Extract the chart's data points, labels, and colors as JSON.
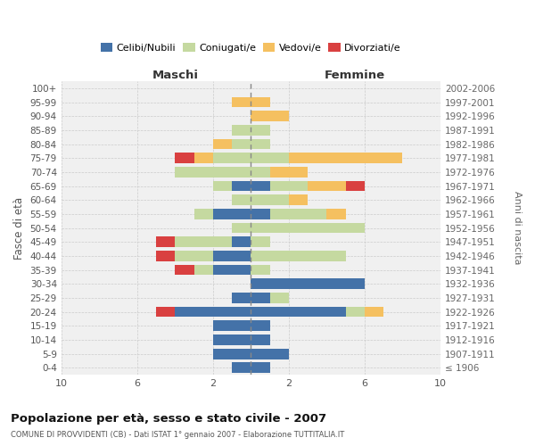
{
  "age_groups": [
    "100+",
    "95-99",
    "90-94",
    "85-89",
    "80-84",
    "75-79",
    "70-74",
    "65-69",
    "60-64",
    "55-59",
    "50-54",
    "45-49",
    "40-44",
    "35-39",
    "30-34",
    "25-29",
    "20-24",
    "15-19",
    "10-14",
    "5-9",
    "0-4"
  ],
  "birth_years": [
    "≤ 1906",
    "1907-1911",
    "1912-1916",
    "1917-1921",
    "1922-1926",
    "1927-1931",
    "1932-1936",
    "1937-1941",
    "1942-1946",
    "1947-1951",
    "1952-1956",
    "1957-1961",
    "1962-1966",
    "1967-1971",
    "1972-1976",
    "1977-1981",
    "1982-1986",
    "1987-1991",
    "1992-1996",
    "1997-2001",
    "2002-2006"
  ],
  "maschi": {
    "celibi": [
      0,
      0,
      0,
      0,
      0,
      0,
      0,
      1,
      0,
      2,
      0,
      1,
      2,
      2,
      0,
      1,
      4,
      2,
      2,
      2,
      1
    ],
    "coniugati": [
      0,
      0,
      0,
      1,
      1,
      2,
      4,
      1,
      1,
      1,
      1,
      3,
      2,
      1,
      0,
      0,
      0,
      0,
      0,
      0,
      0
    ],
    "vedovi": [
      0,
      1,
      0,
      0,
      1,
      1,
      0,
      0,
      0,
      0,
      0,
      0,
      0,
      0,
      0,
      0,
      0,
      0,
      0,
      0,
      0
    ],
    "divorziati": [
      0,
      0,
      0,
      0,
      0,
      1,
      0,
      0,
      0,
      0,
      0,
      1,
      1,
      1,
      0,
      0,
      1,
      0,
      0,
      0,
      0
    ]
  },
  "femmine": {
    "nubili": [
      0,
      0,
      0,
      0,
      0,
      0,
      0,
      1,
      0,
      1,
      0,
      0,
      0,
      0,
      6,
      1,
      5,
      1,
      1,
      2,
      1
    ],
    "coniugate": [
      0,
      0,
      0,
      1,
      1,
      2,
      1,
      2,
      2,
      3,
      6,
      1,
      5,
      1,
      0,
      1,
      1,
      0,
      0,
      0,
      0
    ],
    "vedove": [
      0,
      1,
      2,
      0,
      0,
      6,
      2,
      2,
      1,
      1,
      0,
      0,
      0,
      0,
      0,
      0,
      1,
      0,
      0,
      0,
      0
    ],
    "divorziate": [
      0,
      0,
      0,
      0,
      0,
      0,
      0,
      1,
      0,
      0,
      0,
      0,
      0,
      0,
      0,
      0,
      0,
      0,
      0,
      0,
      0
    ]
  },
  "colors": {
    "celibi_nubili": "#4472a8",
    "coniugati": "#c5d9a0",
    "vedovi": "#f5c060",
    "divorziati": "#d94040"
  },
  "xlim": 10,
  "title": "Popolazione per età, sesso e stato civile - 2007",
  "subtitle": "COMUNE DI PROVVIDENTI (CB) - Dati ISTAT 1° gennaio 2007 - Elaborazione TUTTITALIA.IT",
  "ylabel_left": "Fasce di età",
  "ylabel_right": "Anni di nascita",
  "xlabel_left": "Maschi",
  "xlabel_right": "Femmine",
  "bg_color": "#f0f0f0",
  "grid_color": "#cccccc",
  "xtick_positions": [
    -10,
    -6,
    -2,
    2,
    6,
    10
  ]
}
